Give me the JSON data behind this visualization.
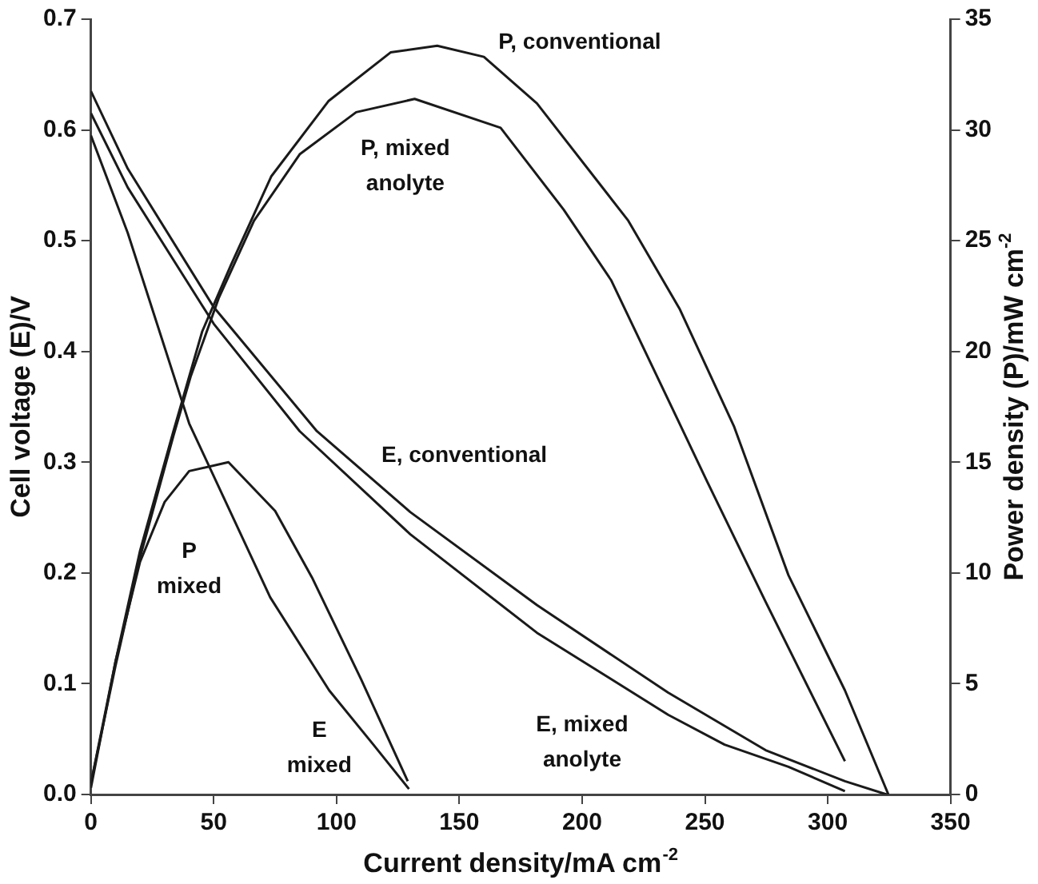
{
  "chart_data": {
    "type": "line",
    "xlabel": "Current density/mA cm$^{-2}$",
    "ylabel": "Cell voltage (E)/V",
    "y2label": "Power density (P)/mW cm$^{-2}$",
    "xlim": [
      0,
      350
    ],
    "xticks": [
      0,
      50,
      100,
      150,
      200,
      250,
      300,
      350
    ],
    "ylim": [
      0,
      0.7
    ],
    "yticks": [
      {
        "value": 0,
        "label": "0.0"
      },
      0.1,
      0.2,
      0.3,
      0.4,
      0.5,
      0.6,
      0.7
    ],
    "y2lim": [
      0,
      35
    ],
    "y2ticks": [
      0,
      5,
      10,
      15,
      20,
      25,
      30,
      35
    ],
    "grid": false,
    "legend": false,
    "marker": "none",
    "line_style": "solid",
    "series": [
      {
        "name": "E, conventional",
        "color": "#1a1a1a",
        "x": [
          0,
          15,
          50,
          92,
          130,
          181.6,
          235,
          274.7,
          307,
          324
        ],
        "values": [
          0.635,
          0.565,
          0.44,
          0.328,
          0.255,
          0.171,
          0.092,
          0.04,
          0.012,
          0
        ]
      },
      {
        "name": "E, mixed\nanolyte",
        "color": "#1a1a1a",
        "x": [
          0,
          15,
          50,
          85,
          130,
          181.6,
          235,
          258,
          284,
          307
        ],
        "values": [
          0.615,
          0.548,
          0.425,
          0.328,
          0.235,
          0.146,
          0.072,
          0.045,
          0.025,
          0.003
        ]
      },
      {
        "name": "E\nmixed",
        "color": "#1a1a1a",
        "x": [
          0,
          15,
          40,
          73,
          97,
          115,
          129.5
        ],
        "values": [
          0.595,
          0.507,
          0.335,
          0.178,
          0.094,
          0.045,
          0.005
        ]
      },
      {
        "name": "P, conventional",
        "color": "#1a1a1a",
        "axis": "y2",
        "x": [
          0,
          10,
          20,
          33.6,
          45.3,
          57,
          73.4,
          96.7,
          122,
          141,
          160,
          181.6,
          218.8,
          239.8,
          261.9,
          284,
          307,
          324.7
        ],
        "values": [
          0.5,
          6,
          11,
          16.4,
          20.9,
          23.9,
          27.9,
          31.3,
          33.5,
          33.8,
          33.3,
          31.2,
          25.9,
          21.9,
          16.6,
          9.9,
          4.7,
          0
        ]
      },
      {
        "name": "P, mixed\nanolyte",
        "color": "#1a1a1a",
        "axis": "y2",
        "x": [
          0,
          10,
          20,
          33.6,
          40.7,
          52,
          66.4,
          85,
          108,
          131.8,
          166.8,
          192.5,
          211.9,
          239,
          251,
          274.7,
          307
        ],
        "values": [
          0.5,
          5.8,
          10.7,
          16.2,
          18.9,
          22.4,
          25.9,
          28.9,
          30.8,
          31.4,
          30.1,
          26.4,
          23.2,
          16.9,
          14.1,
          8.7,
          1.5
        ]
      },
      {
        "name": "P\nmixed",
        "color": "#1a1a1a",
        "axis": "y2",
        "x": [
          0,
          10,
          20,
          30,
          40,
          56,
          75,
          90,
          110,
          129
        ],
        "values": [
          0.3,
          6,
          10.5,
          13.2,
          14.6,
          15,
          12.8,
          9.8,
          5.2,
          0.6
        ]
      }
    ]
  }
}
